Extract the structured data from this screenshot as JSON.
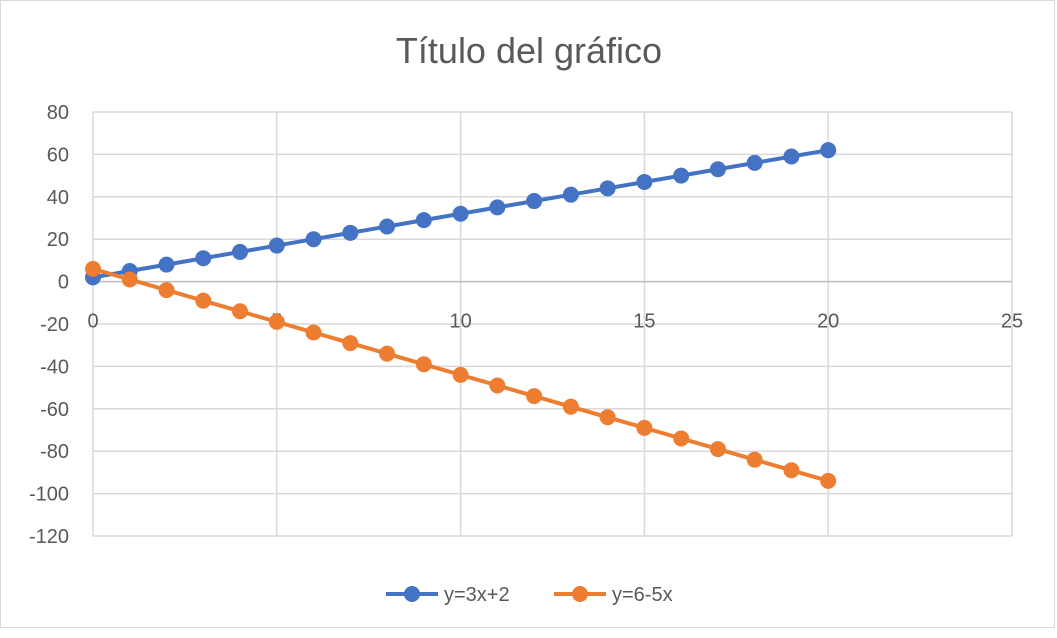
{
  "chart_data": {
    "type": "scatter",
    "title": "Título del gráfico",
    "xlim": [
      0,
      25
    ],
    "ylim": [
      -120,
      80
    ],
    "x_ticks": [
      0,
      5,
      10,
      15,
      20,
      25
    ],
    "y_ticks": [
      80,
      60,
      40,
      20,
      0,
      -20,
      -40,
      -60,
      -80,
      -100,
      -120
    ],
    "grid": true,
    "legend_position": "bottom",
    "series": [
      {
        "name": "y=3x+2",
        "color": "#4472C4",
        "x": [
          0,
          1,
          2,
          3,
          4,
          5,
          6,
          7,
          8,
          9,
          10,
          11,
          12,
          13,
          14,
          15,
          16,
          17,
          18,
          19,
          20
        ],
        "y": [
          2,
          5,
          8,
          11,
          14,
          17,
          20,
          23,
          26,
          29,
          32,
          35,
          38,
          41,
          44,
          47,
          50,
          53,
          56,
          59,
          62
        ]
      },
      {
        "name": "y=6-5x",
        "color": "#ED7D31",
        "x": [
          0,
          1,
          2,
          3,
          4,
          5,
          6,
          7,
          8,
          9,
          10,
          11,
          12,
          13,
          14,
          15,
          16,
          17,
          18,
          19,
          20
        ],
        "y": [
          6,
          1,
          -4,
          -9,
          -14,
          -19,
          -24,
          -29,
          -34,
          -39,
          -44,
          -49,
          -54,
          -59,
          -64,
          -69,
          -74,
          -79,
          -84,
          -89,
          -94
        ]
      }
    ]
  }
}
